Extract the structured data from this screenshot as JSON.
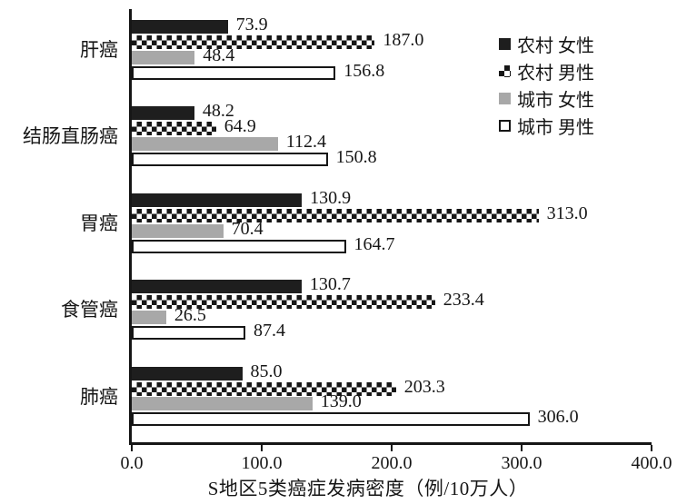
{
  "chart_data": {
    "type": "bar",
    "orientation": "horizontal",
    "title": "",
    "xlabel": "S地区5类癌症发病密度（例/10万人）",
    "ylabel": "",
    "xlim": [
      0,
      400
    ],
    "xticks": [
      0,
      100,
      200,
      300,
      400
    ],
    "xtick_labels": [
      "0.0",
      "100.0",
      "200.0",
      "300.0",
      "400.0"
    ],
    "grid": false,
    "value_labels": true,
    "legend_position": "upper-right",
    "categories": [
      "肝癌",
      "结肠直肠癌",
      "胃癌",
      "食管癌",
      "肺癌"
    ],
    "series": [
      {
        "name": "农村 女性",
        "style": "solid-black",
        "color": "#1e1e1e",
        "values": [
          73.9,
          48.2,
          130.9,
          130.7,
          85.0
        ]
      },
      {
        "name": "农村 男性",
        "style": "checker",
        "color": "#161616",
        "values": [
          187.0,
          64.9,
          313.0,
          233.4,
          203.3
        ]
      },
      {
        "name": "城市 女性",
        "style": "solid-gray",
        "color": "#a8a8a8",
        "values": [
          48.4,
          112.4,
          70.4,
          26.5,
          139.0
        ]
      },
      {
        "name": "城市 男性",
        "style": "outline-white",
        "color": "#ffffff",
        "values": [
          156.8,
          150.8,
          164.7,
          87.4,
          306.0
        ]
      }
    ],
    "colors": {
      "axis": "#161616",
      "text": "#161616",
      "background": "#ffffff"
    }
  }
}
